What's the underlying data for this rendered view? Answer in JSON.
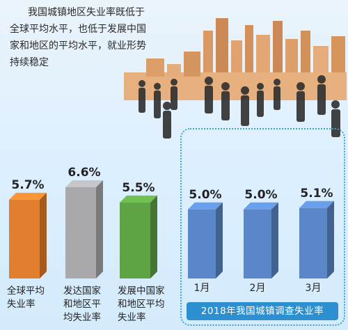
{
  "headline": {
    "line1": "我国城镇地区失业率既低于",
    "line2": "全球平均水平，也低于发展中国",
    "line3": "家和地区的平均水平，就业形势",
    "line4": "持续稳定"
  },
  "chart_data": [
    {
      "type": "bar",
      "categories": [
        [
          "全球平均",
          "失业率"
        ],
        [
          "发达国家",
          "和地区平",
          "均失业率"
        ],
        [
          "发展中国家",
          "和地区平均",
          "失业率"
        ]
      ],
      "values": [
        5.7,
        6.6,
        5.5
      ],
      "value_labels": [
        "5.7%",
        "6.6%",
        "5.5%"
      ],
      "unit": "%",
      "colors": [
        "#e27f2e",
        "#a9a9ab",
        "#5fa444"
      ]
    },
    {
      "type": "bar",
      "title": "2018年我国城镇调查失业率",
      "categories": [
        "1月",
        "2月",
        "3月"
      ],
      "values": [
        5.0,
        5.0,
        5.1
      ],
      "value_labels": [
        "5.0%",
        "5.0%",
        "5.1%"
      ],
      "unit": "%",
      "color": "#5a87c9"
    }
  ],
  "colors": {
    "accent_blue": "#2d8fd0",
    "frame_blue": "#3aa3d6",
    "skyline_orange": "#d98a4a",
    "silhouette": "#2f2f2f"
  }
}
